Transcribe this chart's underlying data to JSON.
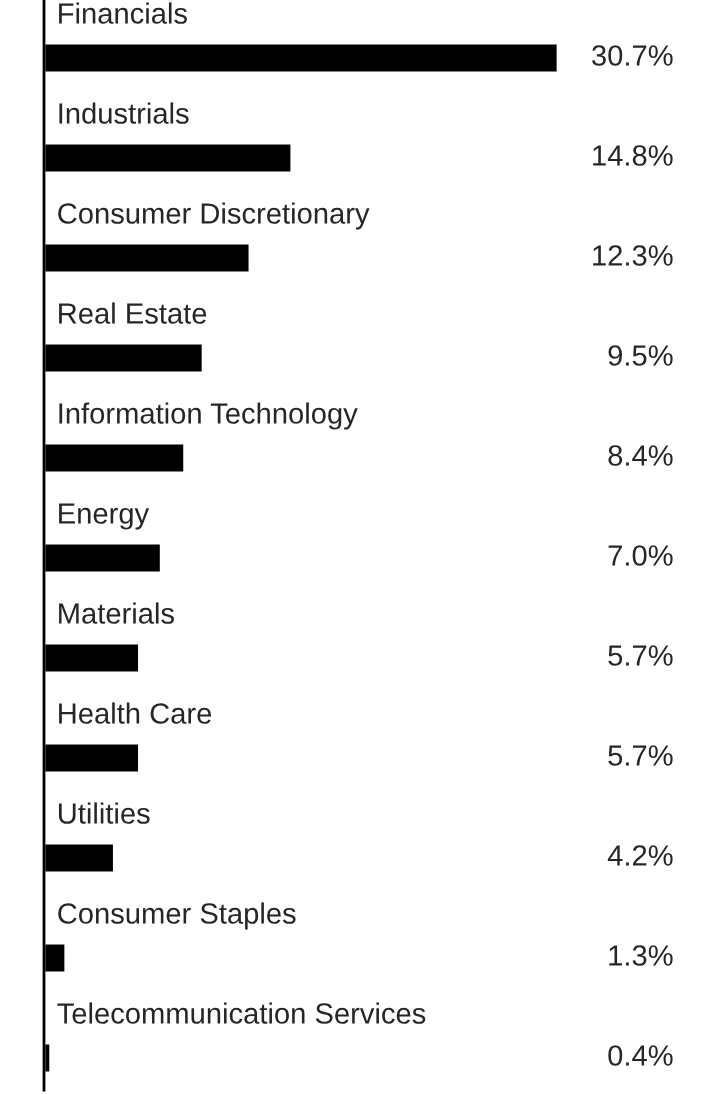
{
  "chart_data": {
    "type": "bar",
    "orientation": "horizontal",
    "categories": [
      "Financials",
      "Industrials",
      "Consumer Discretionary",
      "Real Estate",
      "Information Technology",
      "Energy",
      "Materials",
      "Health Care",
      "Utilities",
      "Consumer Staples",
      "Telecommunication Services"
    ],
    "values": [
      30.7,
      14.8,
      12.3,
      9.5,
      8.4,
      7.0,
      5.7,
      5.7,
      4.2,
      1.3,
      0.4
    ],
    "value_labels": [
      "30.7%",
      "14.8%",
      "12.3%",
      "9.5%",
      "8.4%",
      "7.0%",
      "5.7%",
      "5.7%",
      "4.2%",
      "1.3%",
      "0.4%"
    ],
    "color": "#000000"
  }
}
